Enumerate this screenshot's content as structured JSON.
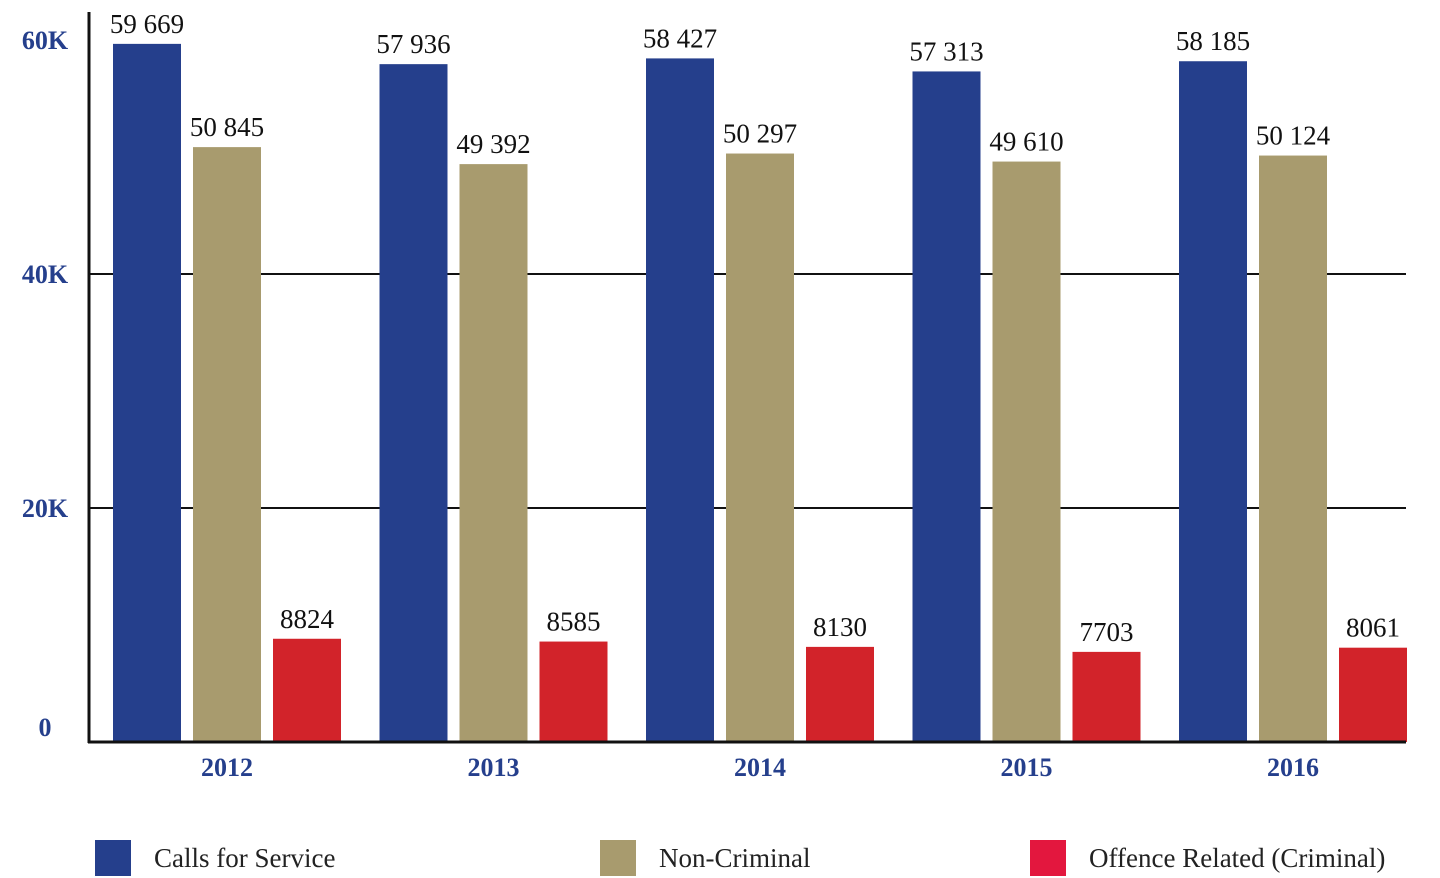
{
  "chart_data": {
    "type": "bar",
    "title": "",
    "xlabel": "",
    "ylabel": "",
    "categories": [
      "2012",
      "2013",
      "2014",
      "2015",
      "2016"
    ],
    "series": [
      {
        "name": "Calls for Service",
        "color": "#253f8c",
        "values": [
          59669,
          57936,
          58427,
          57313,
          58185
        ],
        "labels": [
          "59 669",
          "57 936",
          "58 427",
          "57 313",
          "58 185"
        ]
      },
      {
        "name": "Non-Criminal",
        "color": "#a89b6e",
        "values": [
          50845,
          49392,
          50297,
          49610,
          50124
        ],
        "labels": [
          "50 845",
          "49 392",
          "50 297",
          "49 610",
          "50 124"
        ]
      },
      {
        "name": "Offence Related (Criminal)",
        "color": "#d2232a",
        "legend_color": "#e3173e",
        "values": [
          8824,
          8585,
          8130,
          7703,
          8061
        ],
        "labels": [
          "8824",
          "8585",
          "8130",
          "7703",
          "8061"
        ]
      }
    ],
    "ylim": [
      0,
      60000
    ],
    "yticks": [
      0,
      20000,
      40000,
      60000
    ],
    "ytick_labels": [
      "0",
      "20K",
      "40K",
      "60K"
    ],
    "grid": true,
    "legend_position": "bottom",
    "axis_label_color": "#253f8c"
  }
}
